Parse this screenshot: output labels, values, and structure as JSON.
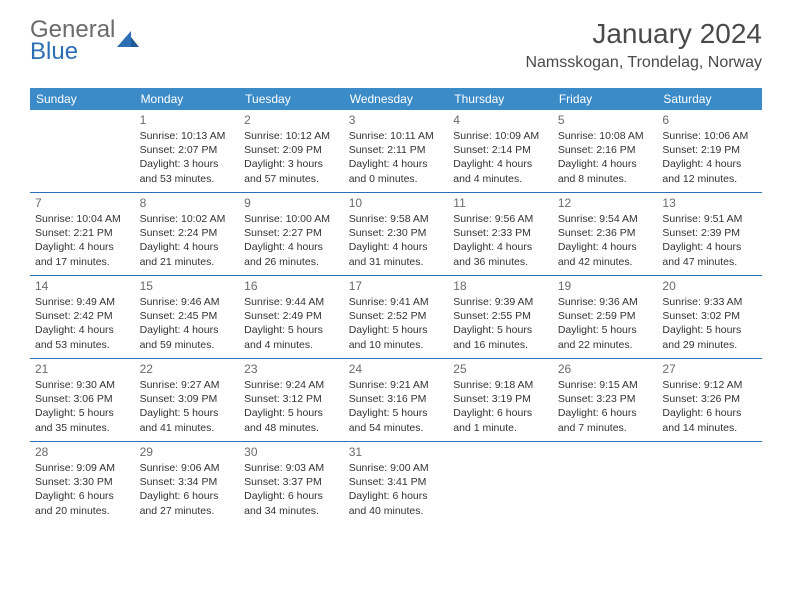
{
  "brand": {
    "line1": "General",
    "line2": "Blue",
    "logo_color": "#2c6fb5",
    "text_color": "#6a6a6a"
  },
  "title": "January 2024",
  "location": "Namsskogan, Trondelag, Norway",
  "colors": {
    "header_bg": "#3b8bc9",
    "header_text": "#ffffff",
    "rule": "#2c6fb5",
    "body_text": "#333333",
    "muted": "#6a6a6a",
    "background": "#ffffff"
  },
  "weekdays": [
    "Sunday",
    "Monday",
    "Tuesday",
    "Wednesday",
    "Thursday",
    "Friday",
    "Saturday"
  ],
  "weeks": [
    [
      null,
      {
        "n": "1",
        "sr": "Sunrise: 10:13 AM",
        "ss": "Sunset: 2:07 PM",
        "d1": "Daylight: 3 hours",
        "d2": "and 53 minutes."
      },
      {
        "n": "2",
        "sr": "Sunrise: 10:12 AM",
        "ss": "Sunset: 2:09 PM",
        "d1": "Daylight: 3 hours",
        "d2": "and 57 minutes."
      },
      {
        "n": "3",
        "sr": "Sunrise: 10:11 AM",
        "ss": "Sunset: 2:11 PM",
        "d1": "Daylight: 4 hours",
        "d2": "and 0 minutes."
      },
      {
        "n": "4",
        "sr": "Sunrise: 10:09 AM",
        "ss": "Sunset: 2:14 PM",
        "d1": "Daylight: 4 hours",
        "d2": "and 4 minutes."
      },
      {
        "n": "5",
        "sr": "Sunrise: 10:08 AM",
        "ss": "Sunset: 2:16 PM",
        "d1": "Daylight: 4 hours",
        "d2": "and 8 minutes."
      },
      {
        "n": "6",
        "sr": "Sunrise: 10:06 AM",
        "ss": "Sunset: 2:19 PM",
        "d1": "Daylight: 4 hours",
        "d2": "and 12 minutes."
      }
    ],
    [
      {
        "n": "7",
        "sr": "Sunrise: 10:04 AM",
        "ss": "Sunset: 2:21 PM",
        "d1": "Daylight: 4 hours",
        "d2": "and 17 minutes."
      },
      {
        "n": "8",
        "sr": "Sunrise: 10:02 AM",
        "ss": "Sunset: 2:24 PM",
        "d1": "Daylight: 4 hours",
        "d2": "and 21 minutes."
      },
      {
        "n": "9",
        "sr": "Sunrise: 10:00 AM",
        "ss": "Sunset: 2:27 PM",
        "d1": "Daylight: 4 hours",
        "d2": "and 26 minutes."
      },
      {
        "n": "10",
        "sr": "Sunrise: 9:58 AM",
        "ss": "Sunset: 2:30 PM",
        "d1": "Daylight: 4 hours",
        "d2": "and 31 minutes."
      },
      {
        "n": "11",
        "sr": "Sunrise: 9:56 AM",
        "ss": "Sunset: 2:33 PM",
        "d1": "Daylight: 4 hours",
        "d2": "and 36 minutes."
      },
      {
        "n": "12",
        "sr": "Sunrise: 9:54 AM",
        "ss": "Sunset: 2:36 PM",
        "d1": "Daylight: 4 hours",
        "d2": "and 42 minutes."
      },
      {
        "n": "13",
        "sr": "Sunrise: 9:51 AM",
        "ss": "Sunset: 2:39 PM",
        "d1": "Daylight: 4 hours",
        "d2": "and 47 minutes."
      }
    ],
    [
      {
        "n": "14",
        "sr": "Sunrise: 9:49 AM",
        "ss": "Sunset: 2:42 PM",
        "d1": "Daylight: 4 hours",
        "d2": "and 53 minutes."
      },
      {
        "n": "15",
        "sr": "Sunrise: 9:46 AM",
        "ss": "Sunset: 2:45 PM",
        "d1": "Daylight: 4 hours",
        "d2": "and 59 minutes."
      },
      {
        "n": "16",
        "sr": "Sunrise: 9:44 AM",
        "ss": "Sunset: 2:49 PM",
        "d1": "Daylight: 5 hours",
        "d2": "and 4 minutes."
      },
      {
        "n": "17",
        "sr": "Sunrise: 9:41 AM",
        "ss": "Sunset: 2:52 PM",
        "d1": "Daylight: 5 hours",
        "d2": "and 10 minutes."
      },
      {
        "n": "18",
        "sr": "Sunrise: 9:39 AM",
        "ss": "Sunset: 2:55 PM",
        "d1": "Daylight: 5 hours",
        "d2": "and 16 minutes."
      },
      {
        "n": "19",
        "sr": "Sunrise: 9:36 AM",
        "ss": "Sunset: 2:59 PM",
        "d1": "Daylight: 5 hours",
        "d2": "and 22 minutes."
      },
      {
        "n": "20",
        "sr": "Sunrise: 9:33 AM",
        "ss": "Sunset: 3:02 PM",
        "d1": "Daylight: 5 hours",
        "d2": "and 29 minutes."
      }
    ],
    [
      {
        "n": "21",
        "sr": "Sunrise: 9:30 AM",
        "ss": "Sunset: 3:06 PM",
        "d1": "Daylight: 5 hours",
        "d2": "and 35 minutes."
      },
      {
        "n": "22",
        "sr": "Sunrise: 9:27 AM",
        "ss": "Sunset: 3:09 PM",
        "d1": "Daylight: 5 hours",
        "d2": "and 41 minutes."
      },
      {
        "n": "23",
        "sr": "Sunrise: 9:24 AM",
        "ss": "Sunset: 3:12 PM",
        "d1": "Daylight: 5 hours",
        "d2": "and 48 minutes."
      },
      {
        "n": "24",
        "sr": "Sunrise: 9:21 AM",
        "ss": "Sunset: 3:16 PM",
        "d1": "Daylight: 5 hours",
        "d2": "and 54 minutes."
      },
      {
        "n": "25",
        "sr": "Sunrise: 9:18 AM",
        "ss": "Sunset: 3:19 PM",
        "d1": "Daylight: 6 hours",
        "d2": "and 1 minute."
      },
      {
        "n": "26",
        "sr": "Sunrise: 9:15 AM",
        "ss": "Sunset: 3:23 PM",
        "d1": "Daylight: 6 hours",
        "d2": "and 7 minutes."
      },
      {
        "n": "27",
        "sr": "Sunrise: 9:12 AM",
        "ss": "Sunset: 3:26 PM",
        "d1": "Daylight: 6 hours",
        "d2": "and 14 minutes."
      }
    ],
    [
      {
        "n": "28",
        "sr": "Sunrise: 9:09 AM",
        "ss": "Sunset: 3:30 PM",
        "d1": "Daylight: 6 hours",
        "d2": "and 20 minutes."
      },
      {
        "n": "29",
        "sr": "Sunrise: 9:06 AM",
        "ss": "Sunset: 3:34 PM",
        "d1": "Daylight: 6 hours",
        "d2": "and 27 minutes."
      },
      {
        "n": "30",
        "sr": "Sunrise: 9:03 AM",
        "ss": "Sunset: 3:37 PM",
        "d1": "Daylight: 6 hours",
        "d2": "and 34 minutes."
      },
      {
        "n": "31",
        "sr": "Sunrise: 9:00 AM",
        "ss": "Sunset: 3:41 PM",
        "d1": "Daylight: 6 hours",
        "d2": "and 40 minutes."
      },
      null,
      null,
      null
    ]
  ]
}
